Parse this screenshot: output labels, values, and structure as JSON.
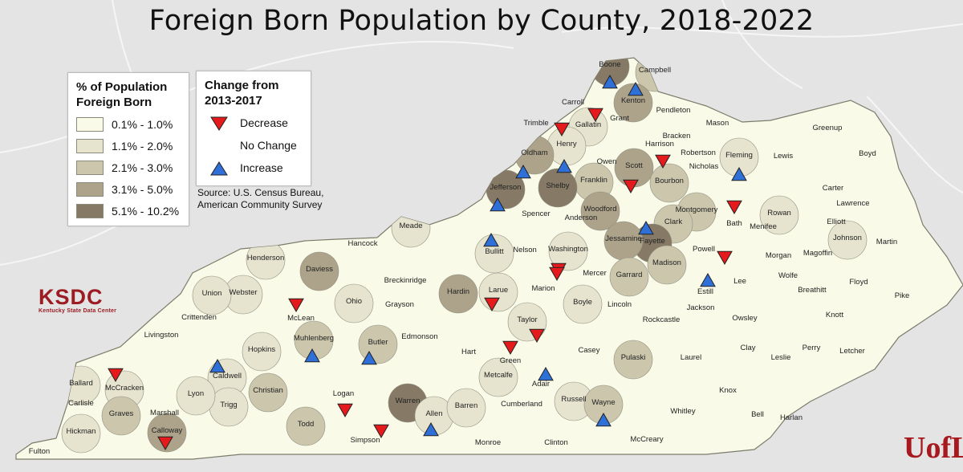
{
  "title": "Foreign Born Population by County, 2018-2022",
  "legend_pct": {
    "title": "% of Population\nForeign Born",
    "classes": [
      {
        "label": "0.1% - 1.0%",
        "color": "#fafae8"
      },
      {
        "label": "1.1% - 2.0%",
        "color": "#e6e4cf"
      },
      {
        "label": "2.1% - 3.0%",
        "color": "#cbc6ac"
      },
      {
        "label": "3.1% - 5.0%",
        "color": "#aca38a"
      },
      {
        "label": "5.1% - 10.2%",
        "color": "#867a66"
      }
    ]
  },
  "legend_change": {
    "title": "Change from\n2013-2017",
    "items": [
      {
        "label": "Decrease",
        "symbol": "triangle-down",
        "color": "#e41a1c"
      },
      {
        "label": "No Change",
        "symbol": "none",
        "color": ""
      },
      {
        "label": "Increase",
        "symbol": "triangle-up",
        "color": "#2f6fd8"
      }
    ]
  },
  "source": "Source: U.S. Census Bureau,\nAmerican Community Survey",
  "logo_ksdc": {
    "mark": "KSDC",
    "subtitle": "Kentucky State Data Center"
  },
  "logo_uofl": {
    "mark": "UofL"
  },
  "map": {
    "counties": [
      {
        "name": "Boone",
        "class": 4,
        "change": "increase"
      },
      {
        "name": "Campbell",
        "class": 2,
        "change": "none"
      },
      {
        "name": "Kenton",
        "class": 3,
        "change": "increase"
      },
      {
        "name": "Carroll",
        "class": 0,
        "change": "decrease"
      },
      {
        "name": "Gallatin",
        "class": 1,
        "change": "none"
      },
      {
        "name": "Grant",
        "class": 0,
        "change": "none"
      },
      {
        "name": "Pendleton",
        "class": 0,
        "change": "none"
      },
      {
        "name": "Trimble",
        "class": 0,
        "change": "decrease"
      },
      {
        "name": "Henry",
        "class": 1,
        "change": "none"
      },
      {
        "name": "Oldham",
        "class": 3,
        "change": "increase"
      },
      {
        "name": "Harrison",
        "class": 0,
        "change": "decrease"
      },
      {
        "name": "Mason",
        "class": 0,
        "change": "none"
      },
      {
        "name": "Bracken",
        "class": 0,
        "change": "none"
      },
      {
        "name": "Robertson",
        "class": 0,
        "change": "none"
      },
      {
        "name": "Greenup",
        "class": 0,
        "change": "none"
      },
      {
        "name": "Boyd",
        "class": 0,
        "change": "none"
      },
      {
        "name": "Lewis",
        "class": 0,
        "change": "none"
      },
      {
        "name": "Fleming",
        "class": 1,
        "change": "increase"
      },
      {
        "name": "Nicholas",
        "class": 0,
        "change": "none"
      },
      {
        "name": "Owen",
        "class": 0,
        "change": "none"
      },
      {
        "name": "Scott",
        "class": 3,
        "change": "decrease"
      },
      {
        "name": "Bourbon",
        "class": 2,
        "change": "none"
      },
      {
        "name": "Franklin",
        "class": 2,
        "change": "none"
      },
      {
        "name": "Shelby",
        "class": 4,
        "change": "increase"
      },
      {
        "name": "Jefferson",
        "class": 4,
        "change": "increase"
      },
      {
        "name": "Carter",
        "class": 0,
        "change": "none"
      },
      {
        "name": "Lawrence",
        "class": 0,
        "change": "none"
      },
      {
        "name": "Elliott",
        "class": 0,
        "change": "none"
      },
      {
        "name": "Rowan",
        "class": 1,
        "change": "none"
      },
      {
        "name": "Bath",
        "class": 0,
        "change": "decrease"
      },
      {
        "name": "Montgomery",
        "class": 2,
        "change": "none"
      },
      {
        "name": "Clark",
        "class": 2,
        "change": "none"
      },
      {
        "name": "Woodford",
        "class": 3,
        "change": "none"
      },
      {
        "name": "Fayette",
        "class": 4,
        "change": "increase"
      },
      {
        "name": "Anderson",
        "class": 0,
        "change": "none"
      },
      {
        "name": "Spencer",
        "class": 0,
        "change": "none"
      },
      {
        "name": "Meade",
        "class": 1,
        "change": "none"
      },
      {
        "name": "Hancock",
        "class": 0,
        "change": "none"
      },
      {
        "name": "Henderson",
        "class": 1,
        "change": "none"
      },
      {
        "name": "Daviess",
        "class": 3,
        "change": "none"
      },
      {
        "name": "Breckinridge",
        "class": 0,
        "change": "none"
      },
      {
        "name": "Bullitt",
        "class": 1,
        "change": "increase"
      },
      {
        "name": "Nelson",
        "class": 0,
        "change": "none"
      },
      {
        "name": "Washington",
        "class": 1,
        "change": "decrease"
      },
      {
        "name": "Mercer",
        "class": 0,
        "change": "none"
      },
      {
        "name": "Jessamine",
        "class": 3,
        "change": "none"
      },
      {
        "name": "Madison",
        "class": 2,
        "change": "none"
      },
      {
        "name": "Powell",
        "class": 0,
        "change": "decrease"
      },
      {
        "name": "Menifee",
        "class": 0,
        "change": "none"
      },
      {
        "name": "Morgan",
        "class": 0,
        "change": "none"
      },
      {
        "name": "Magoffin",
        "class": 0,
        "change": "none"
      },
      {
        "name": "Johnson",
        "class": 1,
        "change": "none"
      },
      {
        "name": "Martin",
        "class": 0,
        "change": "none"
      },
      {
        "name": "Wolfe",
        "class": 0,
        "change": "none"
      },
      {
        "name": "Lee",
        "class": 0,
        "change": "none"
      },
      {
        "name": "Estill",
        "class": 0,
        "change": "increase"
      },
      {
        "name": "Garrard",
        "class": 2,
        "change": "none"
      },
      {
        "name": "Boyle",
        "class": 1,
        "change": "none"
      },
      {
        "name": "Marion",
        "class": 0,
        "change": "decrease"
      },
      {
        "name": "Larue",
        "class": 1,
        "change": "decrease"
      },
      {
        "name": "Hardin",
        "class": 3,
        "change": "none"
      },
      {
        "name": "Grayson",
        "class": 0,
        "change": "none"
      },
      {
        "name": "Ohio",
        "class": 1,
        "change": "none"
      },
      {
        "name": "McLean",
        "class": 0,
        "change": "decrease"
      },
      {
        "name": "Webster",
        "class": 1,
        "change": "none"
      },
      {
        "name": "Union",
        "class": 1,
        "change": "none"
      },
      {
        "name": "Crittenden",
        "class": 0,
        "change": "none"
      },
      {
        "name": "Livingston",
        "class": 0,
        "change": "none"
      },
      {
        "name": "Caldwell",
        "class": 1,
        "change": "increase"
      },
      {
        "name": "Hopkins",
        "class": 1,
        "change": "none"
      },
      {
        "name": "Muhlenberg",
        "class": 2,
        "change": "increase"
      },
      {
        "name": "Butler",
        "class": 2,
        "change": "increase"
      },
      {
        "name": "Edmonson",
        "class": 0,
        "change": "none"
      },
      {
        "name": "Hart",
        "class": 0,
        "change": "none"
      },
      {
        "name": "Green",
        "class": 0,
        "change": "decrease"
      },
      {
        "name": "Taylor",
        "class": 1,
        "change": "decrease"
      },
      {
        "name": "Casey",
        "class": 0,
        "change": "none"
      },
      {
        "name": "Lincoln",
        "class": 0,
        "change": "none"
      },
      {
        "name": "Rockcastle",
        "class": 0,
        "change": "none"
      },
      {
        "name": "Jackson",
        "class": 0,
        "change": "none"
      },
      {
        "name": "Owsley",
        "class": 0,
        "change": "none"
      },
      {
        "name": "Breathitt",
        "class": 0,
        "change": "none"
      },
      {
        "name": "Knott",
        "class": 0,
        "change": "none"
      },
      {
        "name": "Floyd",
        "class": 0,
        "change": "none"
      },
      {
        "name": "Pike",
        "class": 0,
        "change": "none"
      },
      {
        "name": "Perry",
        "class": 0,
        "change": "none"
      },
      {
        "name": "Letcher",
        "class": 0,
        "change": "none"
      },
      {
        "name": "Clay",
        "class": 0,
        "change": "none"
      },
      {
        "name": "Leslie",
        "class": 0,
        "change": "none"
      },
      {
        "name": "Laurel",
        "class": 0,
        "change": "none"
      },
      {
        "name": "Pulaski",
        "class": 2,
        "change": "none"
      },
      {
        "name": "Adair",
        "class": 0,
        "change": "increase"
      },
      {
        "name": "Metcalfe",
        "class": 1,
        "change": "none"
      },
      {
        "name": "Warren",
        "class": 4,
        "change": "none"
      },
      {
        "name": "Logan",
        "class": 0,
        "change": "decrease"
      },
      {
        "name": "Todd",
        "class": 2,
        "change": "none"
      },
      {
        "name": "Christian",
        "class": 2,
        "change": "none"
      },
      {
        "name": "Trigg",
        "class": 1,
        "change": "none"
      },
      {
        "name": "Lyon",
        "class": 1,
        "change": "none"
      },
      {
        "name": "Marshall",
        "class": 0,
        "change": "none"
      },
      {
        "name": "McCracken",
        "class": 1,
        "change": "decrease"
      },
      {
        "name": "Ballard",
        "class": 1,
        "change": "none"
      },
      {
        "name": "Carlisle",
        "class": 0,
        "change": "none"
      },
      {
        "name": "Graves",
        "class": 2,
        "change": "none"
      },
      {
        "name": "Hickman",
        "class": 1,
        "change": "none"
      },
      {
        "name": "Fulton",
        "class": 0,
        "change": "none"
      },
      {
        "name": "Calloway",
        "class": 3,
        "change": "decrease"
      },
      {
        "name": "Simpson",
        "class": 0,
        "change": "decrease"
      },
      {
        "name": "Allen",
        "class": 1,
        "change": "increase"
      },
      {
        "name": "Barren",
        "class": 1,
        "change": "none"
      },
      {
        "name": "Monroe",
        "class": 0,
        "change": "none"
      },
      {
        "name": "Cumberland",
        "class": 0,
        "change": "none"
      },
      {
        "name": "Clinton",
        "class": 0,
        "change": "none"
      },
      {
        "name": "Russell",
        "class": 1,
        "change": "none"
      },
      {
        "name": "Wayne",
        "class": 2,
        "change": "increase"
      },
      {
        "name": "McCreary",
        "class": 0,
        "change": "none"
      },
      {
        "name": "Whitley",
        "class": 0,
        "change": "none"
      },
      {
        "name": "Knox",
        "class": 0,
        "change": "none"
      },
      {
        "name": "Bell",
        "class": 0,
        "change": "none"
      },
      {
        "name": "Harlan",
        "class": 0,
        "change": "none"
      }
    ]
  }
}
